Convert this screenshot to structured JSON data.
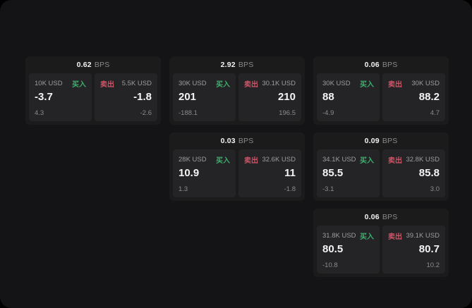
{
  "labels": {
    "bps_unit": "BPS",
    "buy": "买入",
    "sell": "卖出"
  },
  "colors": {
    "page_bg": "#141416",
    "card_bg": "#1b1b1c",
    "tile_bg": "#242426",
    "buy_green": "#3fae6e",
    "sell_red": "#cf5466"
  },
  "cards": [
    {
      "bps": "0.62",
      "buy": {
        "size": "10K USD",
        "price": "-3.7",
        "delta": "4.3"
      },
      "sell": {
        "size": "5.5K USD",
        "price": "-1.8",
        "delta": "-2.6"
      }
    },
    {
      "bps": "2.92",
      "buy": {
        "size": "30K USD",
        "price": "201",
        "delta": "-188.1"
      },
      "sell": {
        "size": "30.1K USD",
        "price": "210",
        "delta": "196.5"
      }
    },
    {
      "bps": "0.06",
      "buy": {
        "size": "30K USD",
        "price": "88",
        "delta": "-4.9"
      },
      "sell": {
        "size": "30K USD",
        "price": "88.2",
        "delta": "4.7"
      }
    },
    {
      "bps": "0.03",
      "buy": {
        "size": "28K USD",
        "price": "10.9",
        "delta": "1.3"
      },
      "sell": {
        "size": "32.6K USD",
        "price": "11",
        "delta": "-1.8"
      }
    },
    {
      "bps": "0.09",
      "buy": {
        "size": "34.1K USD",
        "price": "85.5",
        "delta": "-3.1"
      },
      "sell": {
        "size": "32.8K USD",
        "price": "85.8",
        "delta": "3.0"
      }
    },
    {
      "bps": "0.06",
      "buy": {
        "size": "31.8K USD",
        "price": "80.5",
        "delta": "-10.8"
      },
      "sell": {
        "size": "39.1K USD",
        "price": "80.7",
        "delta": "10.2"
      }
    }
  ]
}
